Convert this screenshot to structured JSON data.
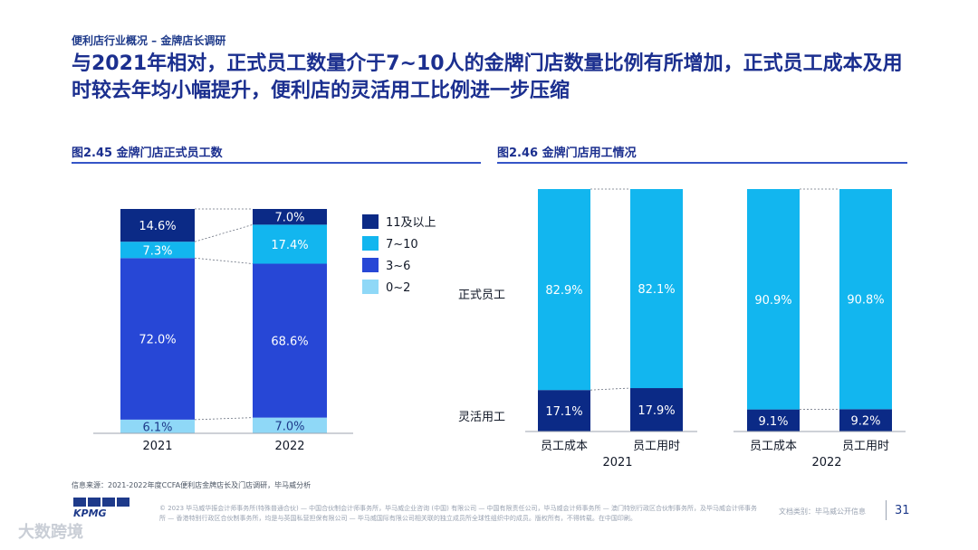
{
  "header": {
    "breadcrumb": "便利店行业概况 – 金牌店长调研",
    "title": "与2021年相对，正式员工数量介于7~10人的金牌门店数量比例有所增加，正式员工成本及用时较去年均小幅提升，便利店的灵活用工比例进一步压缩"
  },
  "colors": {
    "dark_navy": "#0b2a86",
    "cyan": "#12b6ef",
    "royal_blue": "#2747d6",
    "light_blue": "#8fd8f7",
    "rule": "#3555c7"
  },
  "chart_data": [
    {
      "type": "bar",
      "stacked": true,
      "title": "图2.45 金牌门店正式员工数",
      "categories": [
        "2021",
        "2022"
      ],
      "series": [
        {
          "name": "0~2",
          "values": [
            6.1,
            7.0
          ]
        },
        {
          "name": "3~6",
          "values": [
            72.0,
            68.6
          ]
        },
        {
          "name": "7~10",
          "values": [
            7.3,
            17.4
          ]
        },
        {
          "name": "11及以上",
          "values": [
            14.6,
            7.0
          ]
        }
      ],
      "data_labels": {
        "0~2": [
          "6.1%",
          "7.0%"
        ],
        "3~6": [
          "72.0%",
          "68.6%"
        ],
        "7~10": [
          "7.3%",
          "17.4%"
        ],
        "11及以上": [
          "14.6%",
          "7.0%"
        ]
      },
      "legend": [
        "11及以上",
        "7~10",
        "3~6",
        "0~2"
      ],
      "legend_position": "right",
      "ylim": [
        0,
        100
      ]
    },
    {
      "type": "bar",
      "stacked": true,
      "title": "图2.46 金牌门店用工情况",
      "groups": [
        "2021",
        "2022"
      ],
      "categories": [
        "员工成本",
        "员工用时",
        "员工成本",
        "员工用时"
      ],
      "category_group": [
        "2021",
        "2021",
        "2022",
        "2022"
      ],
      "series": [
        {
          "name": "灵活用工",
          "values": [
            17.1,
            17.9,
            9.1,
            9.2
          ]
        },
        {
          "name": "正式员工",
          "values": [
            82.9,
            82.1,
            90.9,
            90.8
          ]
        }
      ],
      "data_labels": {
        "灵活用工": [
          "17.1%",
          "17.9%",
          "9.1%",
          "9.2%"
        ],
        "正式员工": [
          "82.9%",
          "82.1%",
          "90.9%",
          "90.8%"
        ]
      },
      "row_labels": [
        "正式员工",
        "灵活用工"
      ],
      "ylim": [
        0,
        100
      ]
    }
  ],
  "footer": {
    "source": "信息来源：2021-2022年度CCFA便利店金牌店长及门店调研，毕马威分析",
    "copyright": "© 2023 毕马威华振会计师事务所(特殊普通合伙) — 中国合伙制会计师事务所，毕马威企业咨询 (中国) 有限公司 — 中国有限责任公司，毕马威会计师事务所 — 澳门特别行政区合伙制事务所，及毕马威会计师事务所 — 香港特别行政区合伙制事务所，均是与英国私营担保有限公司 — 毕马威国际有限公司相关联的独立成员所全球性组织中的成员。版权所有，不得转载。在中国印刷。",
    "doc_class": "文档类别：毕马威公开信息",
    "page_number": "31",
    "logo": "KPMG",
    "watermark": "大数跨境"
  }
}
